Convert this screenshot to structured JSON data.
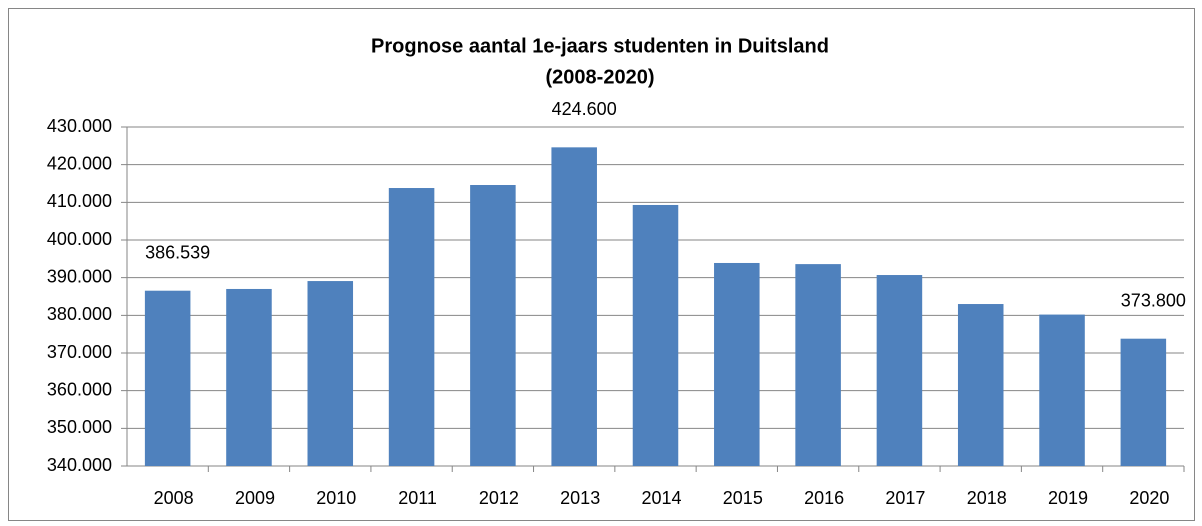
{
  "chart_data": {
    "type": "bar",
    "title": [
      "Prognose aantal 1e-jaars studenten in Duitsland",
      "(2008-2020)"
    ],
    "categories": [
      "2008",
      "2009",
      "2010",
      "2011",
      "2012",
      "2013",
      "2014",
      "2015",
      "2016",
      "2017",
      "2018",
      "2019",
      "2020"
    ],
    "values": [
      386539,
      387000,
      389100,
      413800,
      414600,
      424600,
      409300,
      393900,
      393600,
      390700,
      383000,
      380200,
      373800
    ],
    "value_labels": [
      "386.539",
      null,
      null,
      null,
      null,
      "424.600",
      null,
      null,
      null,
      null,
      null,
      null,
      "373.800"
    ],
    "color": "#4f81bd",
    "ylim": [
      340000,
      430000
    ],
    "yticks": [
      {
        "value": 340000,
        "label": "340.000"
      },
      {
        "value": 350000,
        "label": "350.000"
      },
      {
        "value": 360000,
        "label": "360.000"
      },
      {
        "value": 370000,
        "label": "370.000"
      },
      {
        "value": 380000,
        "label": "380.000"
      },
      {
        "value": 390000,
        "label": "390.000"
      },
      {
        "value": 400000,
        "label": "400.000"
      },
      {
        "value": 410000,
        "label": "410.000"
      },
      {
        "value": 420000,
        "label": "420.000"
      },
      {
        "value": 430000,
        "label": "430.000"
      }
    ],
    "grid": true
  }
}
